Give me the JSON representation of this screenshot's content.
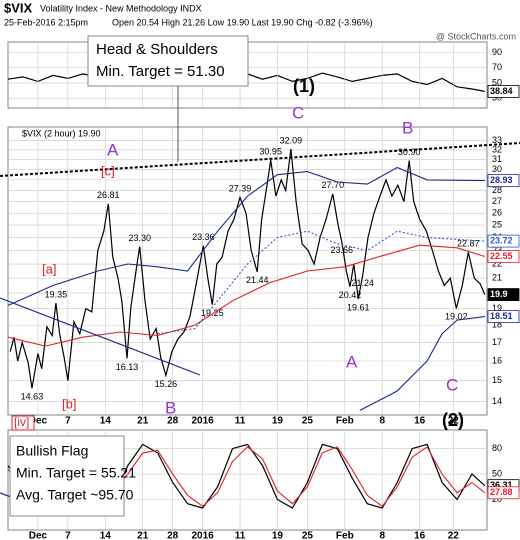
{
  "header": {
    "symbol": "$VIX",
    "name": "Volatility Index - New Methodology INDX",
    "date": "25-Feb-2016 2:15pm",
    "quote": "Open 20.54 High 21.26 Low 19.90 Last 19.90 Chg -0.82 (-3.96%)",
    "source": "@ StockCharts.com"
  },
  "chart_data": [
    {
      "type": "line",
      "xlim": [
        0,
        64
      ],
      "ylim": [
        17,
        104
      ],
      "yticks": [
        90,
        70,
        50,
        30
      ],
      "grid": true,
      "series": [
        {
          "color": "#000000",
          "x": [
            0,
            2,
            4,
            6,
            8,
            10,
            12,
            14,
            16,
            18,
            20,
            22,
            24,
            26,
            28,
            30,
            32,
            34,
            36,
            38,
            40,
            42,
            44,
            46,
            48,
            50,
            52,
            54,
            56,
            58,
            60,
            62,
            63.7
          ],
          "values": [
            55,
            58,
            52,
            60,
            56,
            62,
            58,
            55,
            66,
            60,
            52,
            48,
            56,
            60,
            64,
            58,
            62,
            55,
            60,
            52,
            56,
            63,
            58,
            52,
            56,
            60,
            62,
            52,
            48,
            56,
            45,
            42,
            38.84
          ]
        }
      ]
    },
    {
      "type": "line",
      "log": true,
      "legend": "$VIX (2 hour) 19.90",
      "xlim": [
        0,
        64
      ],
      "ylim": [
        13.4,
        34.5
      ],
      "yticks": [
        33,
        32,
        31,
        30,
        29,
        28,
        27,
        26,
        25,
        24,
        23,
        22,
        21,
        20,
        19,
        18,
        17,
        16,
        15,
        14
      ],
      "xticks": [
        {
          "value": 4,
          "label": "Dec"
        },
        {
          "value": 8,
          "label": "7"
        },
        {
          "value": 13,
          "label": "14"
        },
        {
          "value": 18,
          "label": "21"
        },
        {
          "value": 22,
          "label": "28"
        },
        {
          "value": 26,
          "label": "2016"
        },
        {
          "value": 31,
          "label": "11"
        },
        {
          "value": 36,
          "label": "19"
        },
        {
          "value": 40,
          "label": "25"
        },
        {
          "value": 45,
          "label": "Feb"
        },
        {
          "value": 50,
          "label": "8"
        },
        {
          "value": 55,
          "label": "16"
        },
        {
          "value": 59.5,
          "label": "22"
        }
      ],
      "grid": true,
      "series": [
        {
          "color": "#000000",
          "x": [
            0.3,
            0.8,
            1.3,
            1.9,
            2.7,
            3.2,
            4.0,
            4.5,
            5.2,
            5.9,
            6.4,
            6.9,
            7.5,
            8.0,
            8.8,
            9.6,
            10.4,
            11.2,
            12.0,
            12.8,
            13.4,
            14.0,
            14.7,
            15.2,
            15.9,
            16.4,
            17.1,
            17.6,
            18.3,
            19.0,
            19.8,
            20.4,
            21.1,
            21.9,
            22.7,
            23.5,
            24.3,
            25.1,
            26.1,
            26.7,
            27.3,
            27.9,
            28.6,
            29.4,
            30.2,
            31.0,
            31.8,
            32.5,
            33.3,
            33.9,
            34.6,
            35.1,
            35.8,
            36.5,
            37.1,
            37.8,
            38.5,
            39.3,
            40.1,
            40.9,
            41.7,
            42.5,
            43.4,
            44.1,
            44.6,
            45.2,
            45.7,
            46.2,
            46.8,
            47.4,
            48.1,
            48.9,
            49.7,
            50.5,
            51.3,
            52.1,
            52.9,
            53.6,
            54.2,
            55.0,
            55.9,
            56.7,
            57.5,
            58.3,
            59.1,
            59.9,
            60.7,
            61.5,
            62.3,
            63.1,
            63.7
          ],
          "values": [
            16.5,
            17.3,
            16.0,
            17.0,
            15.9,
            14.63,
            16.4,
            15.6,
            17.9,
            17.4,
            19.35,
            17.5,
            16.2,
            15.0,
            18.2,
            17.5,
            19.0,
            18.8,
            23.0,
            24.5,
            26.81,
            22.5,
            21.0,
            19.5,
            16.13,
            19.0,
            21.5,
            23.3,
            19.5,
            17.2,
            17.8,
            16.2,
            15.26,
            16.5,
            17.2,
            17.6,
            18.5,
            20.5,
            23.36,
            21.0,
            19.25,
            22.0,
            22.5,
            24.5,
            25.5,
            27.39,
            26.0,
            23.0,
            21.44,
            25.5,
            28.5,
            30.95,
            27.5,
            29.0,
            28.0,
            32.09,
            27.0,
            23.5,
            23.0,
            22.0,
            24.0,
            25.5,
            27.7,
            25.0,
            23.66,
            21.5,
            20.42,
            22.0,
            19.61,
            21.24,
            24.0,
            26.0,
            27.5,
            29.0,
            27.5,
            28.5,
            27.0,
            30.9,
            27.0,
            25.5,
            24.5,
            23.0,
            21.5,
            20.5,
            21.0,
            19.02,
            20.5,
            22.87,
            21.0,
            20.6,
            19.9
          ],
          "value_labels": [
            null,
            null,
            null,
            null,
            null,
            "14.63",
            null,
            null,
            null,
            null,
            "19.35",
            null,
            null,
            null,
            null,
            null,
            null,
            null,
            null,
            null,
            "26.81",
            null,
            null,
            null,
            "16.13",
            null,
            null,
            "23.30",
            null,
            null,
            null,
            null,
            "15.26",
            null,
            null,
            null,
            null,
            null,
            "23.36",
            null,
            "19.25",
            null,
            null,
            null,
            null,
            "27.39",
            null,
            null,
            "21.44",
            null,
            null,
            "30.95",
            null,
            null,
            null,
            "32.09",
            null,
            null,
            null,
            null,
            null,
            null,
            "27.70",
            null,
            "23.66",
            null,
            "20.42",
            null,
            "19.61",
            "21.24",
            null,
            null,
            null,
            null,
            null,
            null,
            null,
            "30.90",
            null,
            null,
            null,
            null,
            null,
            null,
            null,
            "19.02",
            null,
            "22.87",
            null,
            null,
            "19.90"
          ]
        },
        {
          "color": "#e0202a",
          "x": [
            0,
            5,
            10,
            15,
            20,
            25,
            30,
            35,
            40,
            45,
            50,
            55,
            60,
            63.7
          ],
          "values": [
            17.3,
            16.8,
            17.3,
            17.6,
            17.4,
            18.0,
            19.5,
            20.7,
            21.5,
            21.8,
            22.6,
            23.4,
            23.2,
            22.55
          ]
        },
        {
          "color": "#1a2a8c",
          "x": [
            0,
            6,
            12,
            16,
            20,
            24,
            28,
            32,
            36,
            40,
            44,
            48,
            52,
            56,
            63.7
          ],
          "values": [
            19.2,
            20.5,
            21.5,
            22.0,
            21.8,
            21.5,
            24.5,
            27.5,
            29.5,
            29.8,
            28.8,
            28.6,
            30.2,
            29.0,
            28.93
          ]
        },
        {
          "color": "#3355cc",
          "dashed": true,
          "x": [
            20,
            25,
            28,
            32,
            36,
            40,
            44,
            48,
            52,
            56,
            63.7
          ],
          "values": [
            17.5,
            17.8,
            19.5,
            22.0,
            24.0,
            24.5,
            23.5,
            23.0,
            24.5,
            24.0,
            23.72
          ]
        },
        {
          "color": "#1a2a8c",
          "x": [
            47,
            52,
            56,
            58,
            60,
            63.7
          ],
          "values": [
            13.6,
            14.5,
            16.0,
            17.5,
            18.3,
            18.51
          ]
        }
      ],
      "annotations": [
        "Head & Shoulders",
        "Min. Target = 51.30",
        "(1)",
        "C",
        "A",
        "[c]",
        "[a]",
        "[b]",
        "B",
        "B",
        "A",
        "C",
        "(2)",
        "[iv]"
      ]
    },
    {
      "type": "line",
      "xlim": [
        0,
        64
      ],
      "ylim": [
        -16,
        102
      ],
      "yticks": [
        80,
        50,
        20
      ],
      "grid": true,
      "xticks": [
        {
          "value": 4,
          "label": "Dec"
        },
        {
          "value": 8,
          "label": "7"
        },
        {
          "value": 13,
          "label": "14"
        },
        {
          "value": 18,
          "label": "21"
        },
        {
          "value": 22,
          "label": "28"
        },
        {
          "value": 26,
          "label": "2016"
        },
        {
          "value": 31,
          "label": "11"
        },
        {
          "value": 36,
          "label": "19"
        },
        {
          "value": 40,
          "label": "25"
        },
        {
          "value": 45,
          "label": "Feb"
        },
        {
          "value": 50,
          "label": "8"
        },
        {
          "value": 55,
          "label": "16"
        },
        {
          "value": 59.5,
          "label": "22"
        }
      ],
      "series": [
        {
          "color": "#000000",
          "x": [
            0,
            2,
            4,
            6,
            8,
            10,
            12,
            14,
            16,
            18,
            20,
            22,
            24,
            26,
            28,
            30,
            32,
            34,
            36,
            38,
            40,
            42,
            44,
            46,
            48,
            50,
            52,
            54,
            56,
            58,
            60,
            62,
            63.7
          ],
          "values": [
            60,
            30,
            15,
            45,
            85,
            70,
            40,
            20,
            60,
            85,
            75,
            40,
            15,
            10,
            35,
            80,
            85,
            60,
            20,
            10,
            40,
            85,
            80,
            45,
            15,
            10,
            40,
            80,
            85,
            40,
            20,
            50,
            36.31
          ]
        },
        {
          "color": "#e0202a",
          "x": [
            0,
            2,
            4,
            6,
            8,
            10,
            12,
            14,
            16,
            18,
            20,
            22,
            24,
            26,
            28,
            30,
            32,
            34,
            36,
            38,
            40,
            42,
            44,
            46,
            48,
            50,
            52,
            54,
            56,
            58,
            60,
            62,
            63.7
          ],
          "values": [
            55,
            40,
            25,
            35,
            70,
            75,
            50,
            30,
            50,
            75,
            78,
            50,
            25,
            12,
            28,
            65,
            82,
            68,
            30,
            15,
            35,
            75,
            82,
            55,
            25,
            12,
            35,
            70,
            82,
            50,
            28,
            40,
            27.88
          ]
        }
      ],
      "annotations": [
        "Bullish Flag",
        "Min. Target = 55.21",
        "Avg. Target ~95.70"
      ]
    }
  ]
}
